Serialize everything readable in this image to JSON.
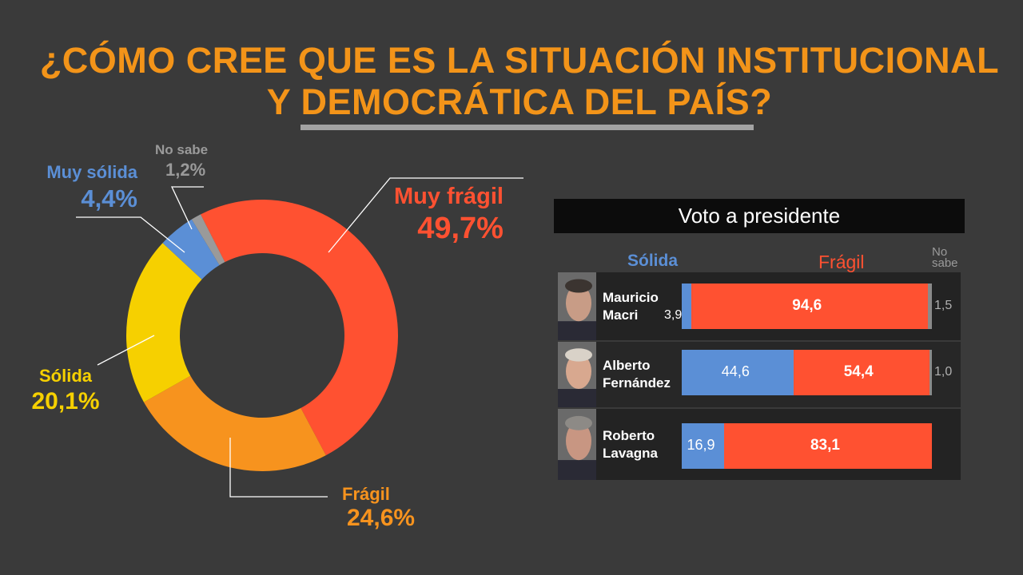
{
  "title": {
    "line1": "¿CÓMO CREE QUE ES LA SITUACIÓN INSTITUCIONAL",
    "line2": "Y DEMOCRÁTICA DEL PAÍS?"
  },
  "colors": {
    "muy_fragil": "#ff5131",
    "fragil": "#f7931e",
    "solida": "#f6d000",
    "muy_solida": "#5b8fd6",
    "no_sabe": "#9a9a9a",
    "title": "#f39419",
    "background": "#3a3a3a"
  },
  "donut_labels": {
    "muy_fragil": {
      "name": "Muy frágil",
      "value": "49,7%"
    },
    "fragil": {
      "name": "Frágil",
      "value": "24,6%"
    },
    "solida": {
      "name": "Sólida",
      "value": "20,1%"
    },
    "muy_solida": {
      "name": "Muy sólida",
      "value": "4,4%"
    },
    "no_sabe": {
      "name": "No sabe",
      "value": "1,2%"
    }
  },
  "vote_panel": {
    "header": "Voto a presidente",
    "legend": {
      "solida": "Sólida",
      "fragil": "Frágil",
      "no_sabe_1": "No",
      "no_sabe_2": "sabe"
    },
    "rows": [
      {
        "name": "Mauricio\nMacri",
        "solida": 3.9,
        "fragil": 94.6,
        "no_sabe": 1.5,
        "solida_label": "3,9",
        "fragil_label": "94,6",
        "no_sabe_label": "1,5"
      },
      {
        "name": "Alberto\nFernández",
        "solida": 44.6,
        "fragil": 54.4,
        "no_sabe": 1.0,
        "solida_label": "44,6",
        "fragil_label": "54,4",
        "no_sabe_label": "1,0"
      },
      {
        "name": "Roberto\nLavagna",
        "solida": 16.9,
        "fragil": 83.1,
        "no_sabe": 0,
        "solida_label": "16,9",
        "fragil_label": "83,1",
        "no_sabe_label": ""
      }
    ]
  },
  "chart_data": [
    {
      "type": "pie",
      "title": "¿CÓMO CREE QUE ES LA SITUACIÓN INSTITUCIONAL Y DEMOCRÁTICA DEL PAÍS?",
      "categories": [
        "Muy frágil",
        "Frágil",
        "Sólida",
        "Muy sólida",
        "No sabe"
      ],
      "values": [
        49.7,
        24.6,
        20.1,
        4.4,
        1.2
      ],
      "donut": true
    },
    {
      "type": "bar",
      "title": "Voto a presidente",
      "stacked": true,
      "orientation": "horizontal",
      "categories": [
        "Mauricio Macri",
        "Alberto Fernández",
        "Roberto Lavagna"
      ],
      "series": [
        {
          "name": "Sólida",
          "values": [
            3.9,
            44.6,
            16.9
          ]
        },
        {
          "name": "Frágil",
          "values": [
            94.6,
            54.4,
            83.1
          ]
        },
        {
          "name": "No sabe",
          "values": [
            1.5,
            1.0,
            0
          ]
        }
      ]
    }
  ]
}
